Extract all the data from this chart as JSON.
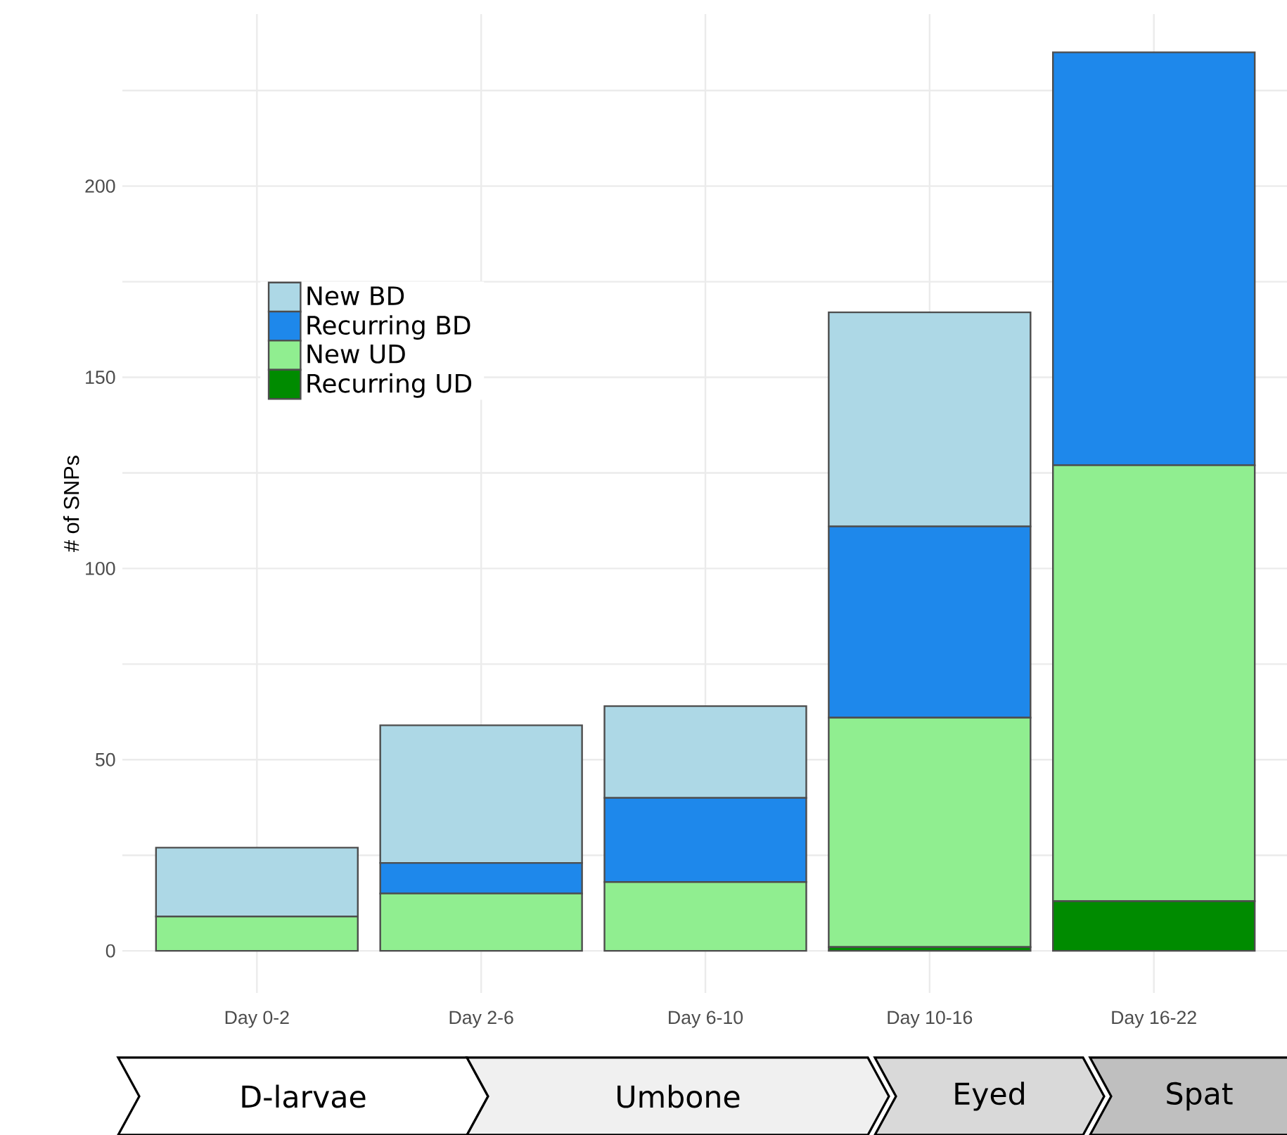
{
  "chart_data": {
    "type": "bar",
    "stacked": true,
    "ylabel": "# of SNPs",
    "categories": [
      "Day 0-2",
      "Day 2-6",
      "Day 6-10",
      "Day 10-16",
      "Day 16-22"
    ],
    "series": [
      {
        "name": "Recurring UD",
        "color": "#008b00",
        "values": [
          0,
          0,
          0,
          1,
          13
        ]
      },
      {
        "name": "New UD",
        "color": "#90ee90",
        "values": [
          9,
          15,
          18,
          60,
          114
        ]
      },
      {
        "name": "Recurring BD",
        "color": "#1e88eb",
        "values": [
          0,
          8,
          22,
          50,
          108
        ]
      },
      {
        "name": "New BD",
        "color": "#add8e6",
        "values": [
          18,
          36,
          24,
          56,
          0
        ]
      }
    ],
    "ylim": [
      -11,
      245
    ],
    "yticks": [
      0,
      {
        "value": 25,
        "label": null
      },
      50,
      {
        "value": 75,
        "label": null
      },
      100,
      {
        "value": 125,
        "label": null
      },
      150,
      {
        "value": 175,
        "label": null
      },
      200,
      {
        "value": 225,
        "label": null
      }
    ],
    "grid": true,
    "legend": "left",
    "annotations": [
      "D-larvae",
      "Umbone",
      "Eyed",
      "Spat"
    ]
  }
}
